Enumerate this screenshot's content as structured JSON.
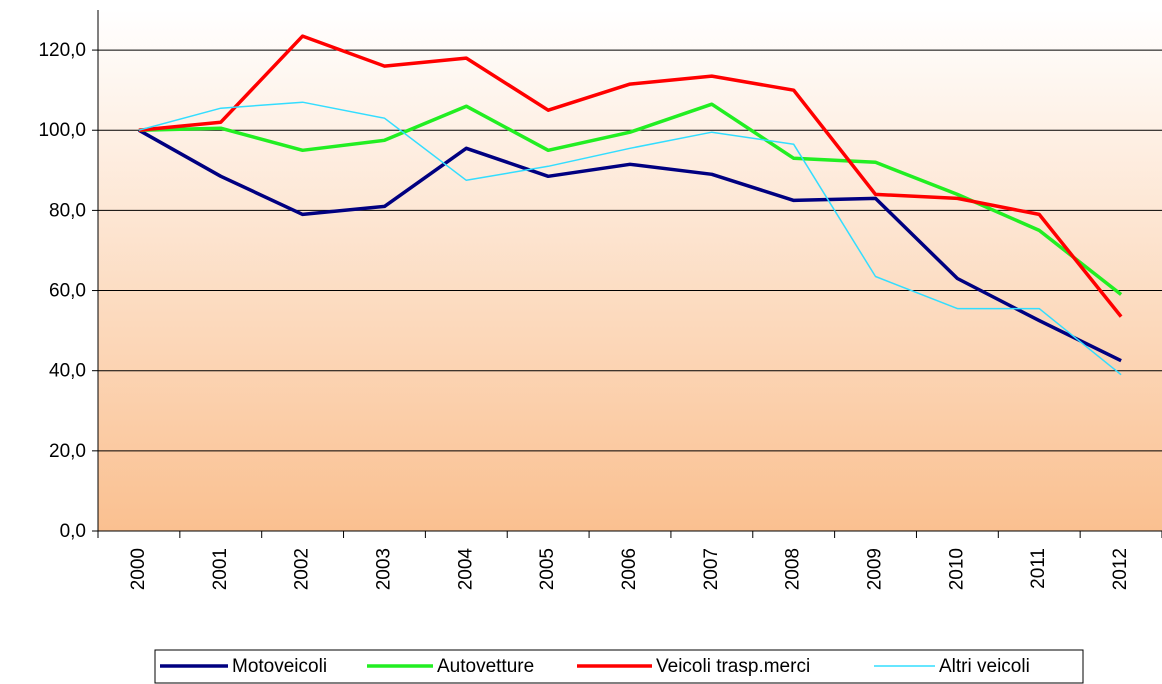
{
  "chart_data": {
    "type": "line",
    "categories": [
      "2000",
      "2001",
      "2002",
      "2003",
      "2004",
      "2005",
      "2006",
      "2007",
      "2008",
      "2009",
      "2010",
      "2011",
      "2012"
    ],
    "series": [
      {
        "name": "Motoveicoli",
        "color": "#000080",
        "values": [
          100,
          88.5,
          79,
          81,
          95.5,
          88.5,
          91.5,
          89,
          82.5,
          83,
          63,
          52.5,
          42.5
        ]
      },
      {
        "name": "Autovetture",
        "color": "#22ee22",
        "values": [
          100,
          100.5,
          95,
          97.5,
          106,
          95,
          99.5,
          106.5,
          93,
          92,
          84,
          75,
          59
        ]
      },
      {
        "name": "Veicoli trasp.merci",
        "color": "#ff0000",
        "values": [
          100,
          102,
          123.5,
          116,
          118,
          105,
          111.5,
          113.5,
          110,
          84,
          83,
          79,
          53.5
        ]
      },
      {
        "name": "Altri veicoli",
        "color": "#33ddff",
        "values": [
          100,
          105.5,
          107,
          103,
          87.5,
          91,
          95.5,
          99.5,
          96.5,
          63.5,
          55.5,
          55.5,
          39
        ]
      }
    ],
    "ylim": [
      0,
      130
    ],
    "yticks": [
      {
        "value": 0,
        "label": "0,0"
      },
      {
        "value": 20,
        "label": "20,0"
      },
      {
        "value": 40,
        "label": "40,0"
      },
      {
        "value": 60,
        "label": "60,0"
      },
      {
        "value": 80,
        "label": "80,0"
      },
      {
        "value": 100,
        "label": "100,0"
      },
      {
        "value": 120,
        "label": "120,0"
      }
    ],
    "grid": true
  }
}
